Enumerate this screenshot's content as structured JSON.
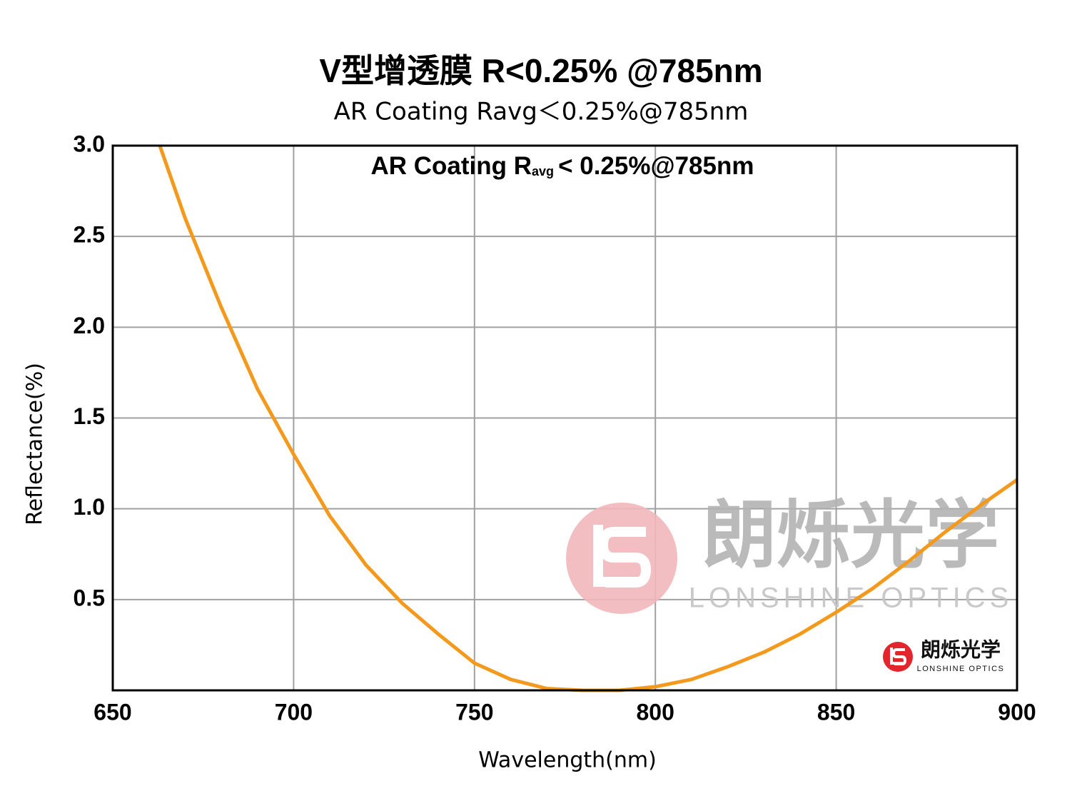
{
  "chart_data": {
    "type": "line",
    "title": "V型增透膜 R<0.25% @785nm",
    "subtitle": "AR Coating  Ravg＜0.25%@785nm",
    "annotation": {
      "main": "AR Coating R",
      "sub": "avg",
      "rest": "< 0.25%@785nm"
    },
    "x_label": "Wavelength(nm)",
    "y_label": "Reflectance(%)",
    "watermark": {
      "name": "朗烁光学",
      "name_en": "LONSHINE OPTICS"
    },
    "logo": {
      "name": "朗烁光学",
      "name_en": "LONSHINE OPTICS"
    },
    "x": [
      663,
      670,
      680,
      690,
      700,
      710,
      720,
      730,
      740,
      750,
      760,
      770,
      780,
      785,
      790,
      800,
      810,
      820,
      830,
      840,
      850,
      860,
      870,
      880,
      890,
      900
    ],
    "values": [
      3.0,
      2.6,
      2.11,
      1.66,
      1.3,
      0.96,
      0.69,
      0.48,
      0.31,
      0.15,
      0.06,
      0.01,
      0.0,
      0.0,
      0.0,
      0.02,
      0.06,
      0.13,
      0.21,
      0.31,
      0.43,
      0.56,
      0.71,
      0.87,
      1.02,
      1.16
    ],
    "color": "#f39a1e",
    "xlim": [
      650,
      900
    ],
    "xticks": [
      650,
      700,
      750,
      800,
      850,
      900
    ],
    "ylim": [
      0,
      3
    ],
    "yticks": [
      0.5,
      {
        "value": 1,
        "label": "1.0"
      },
      1.5,
      {
        "value": 2,
        "label": "2.0"
      },
      2.5,
      {
        "value": 3,
        "label": "3.0"
      }
    ],
    "grid": true
  }
}
